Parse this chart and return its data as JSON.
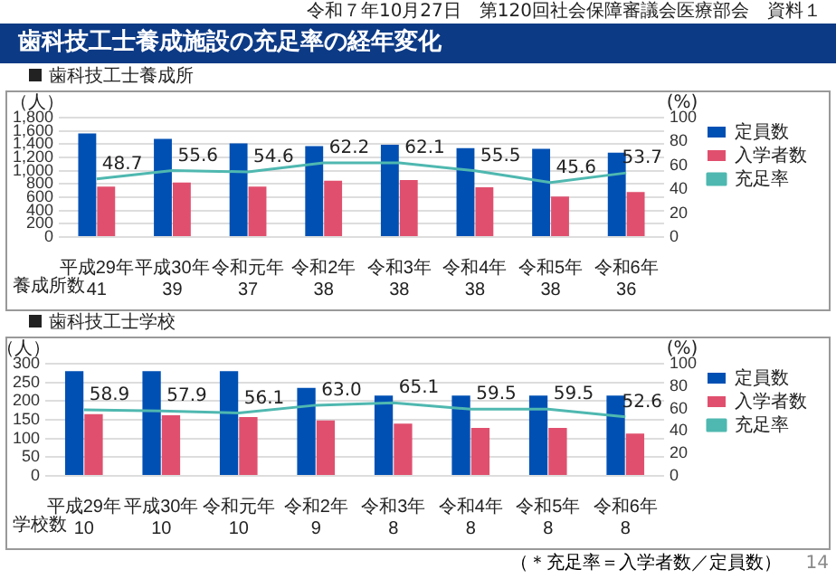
{
  "chart_data": [
    {
      "type": "bar",
      "title": "歯科技工士養成施設の充足率の経年変化",
      "subtitle": "歯科技工士養成所",
      "ylabel": "（人）",
      "y2label": "(%)",
      "categories": [
        "平成29年\n41",
        "平成30年\n39",
        "令和元年\n37",
        "令和2年\n38",
        "令和3年\n38",
        "令和4年\n38",
        "令和5年\n38",
        "令和6年\n36"
      ],
      "series": [
        {
          "name": "定員数",
          "type": "bar",
          "color": "#0050b4",
          "values": [
            1560,
            1480,
            1410,
            1370,
            1390,
            1340,
            1330,
            1270
          ]
        },
        {
          "name": "入学者数",
          "type": "bar",
          "color": "#e0506e",
          "values": [
            760,
            820,
            760,
            850,
            860,
            750,
            610,
            680
          ]
        },
        {
          "name": "充足率",
          "type": "line",
          "axis": "y2",
          "color": "#4fb8b0",
          "values": [
            48.7,
            55.6,
            54.6,
            62.2,
            62.1,
            55.5,
            45.6,
            53.7
          ],
          "value_labels": [
            "48.7",
            "55.6",
            "54.6",
            "62.2",
            "62.1",
            "55.5",
            "45.6",
            "53.7"
          ]
        }
      ],
      "ylim": [
        0,
        1800
      ],
      "yticks": [
        0,
        200,
        400,
        600,
        800,
        {
          "value": 1000,
          "label": "1,000"
        },
        {
          "value": 1200,
          "label": "1,200"
        },
        {
          "value": 1400,
          "label": "1,400"
        },
        {
          "value": 1600,
          "label": "1,600"
        },
        {
          "value": 1800,
          "label": "1,800"
        }
      ],
      "y2lim": [
        0,
        100
      ],
      "y2ticks": [
        0,
        20,
        40,
        60,
        80,
        100
      ],
      "grid": "y",
      "legend": "right",
      "marker": "none",
      "annotations": [
        "養成所数",
        "令和７年10月27日　第120回社会保障審議会医療部会　資料１"
      ]
    },
    {
      "type": "bar",
      "title": "歯科技工士学校",
      "ylabel": "（人）",
      "y2label": "(%)",
      "categories": [
        "平成29年\n10",
        "平成30年\n10",
        "令和元年\n10",
        "令和2年\n9",
        "令和3年\n8",
        "令和4年\n8",
        "令和5年\n8",
        "令和6年\n8"
      ],
      "series": [
        {
          "name": "定員数",
          "type": "bar",
          "color": "#0050b4",
          "values": [
            280,
            280,
            280,
            235,
            215,
            215,
            215,
            215
          ]
        },
        {
          "name": "入学者数",
          "type": "bar",
          "color": "#e0506e",
          "values": [
            165,
            162,
            157,
            148,
            140,
            128,
            128,
            113
          ]
        },
        {
          "name": "充足率",
          "type": "line",
          "axis": "y2",
          "color": "#4fb8b0",
          "values": [
            58.9,
            57.9,
            56.1,
            63.0,
            65.1,
            59.5,
            59.5,
            52.6
          ],
          "value_labels": [
            "58.9",
            "57.9",
            "56.1",
            "63.0",
            "65.1",
            "59.5",
            "59.5",
            "52.6"
          ]
        }
      ],
      "ylim": [
        0,
        300
      ],
      "yticks": [
        0,
        50,
        100,
        150,
        200,
        250,
        300
      ],
      "y2lim": [
        0,
        100
      ],
      "y2ticks": [
        0,
        20,
        40,
        60,
        80,
        100
      ],
      "grid": "y",
      "legend": "right",
      "marker": "none",
      "annotations": [
        "学校数",
        "（＊充足率＝入学者数／定員数）",
        "14"
      ]
    }
  ]
}
